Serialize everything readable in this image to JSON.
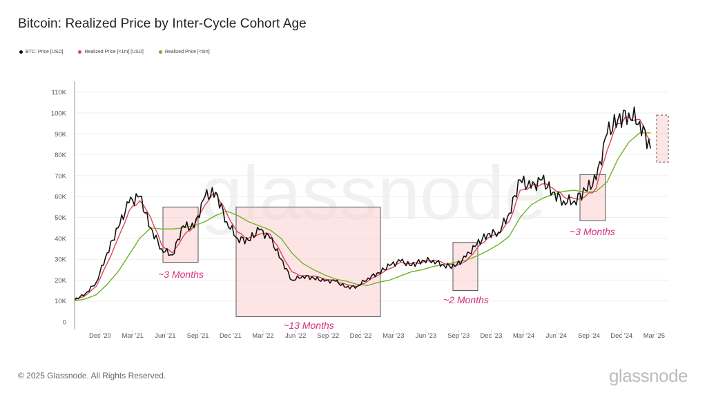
{
  "title": "Bitcoin: Realized Price by Inter-Cycle Cohort Age",
  "legend": [
    {
      "label": "BTC: Price [USD]",
      "color": "#111111"
    },
    {
      "label": "Realized Price [<1m] [USD]",
      "color": "#e0455a"
    },
    {
      "label": "Realized Price [<6m]",
      "color": "#6fb31f"
    }
  ],
  "footer": {
    "copyright": "© 2025 Glassnode. All Rights Reserved.",
    "brand": "glassnode"
  },
  "watermark": "glassnode",
  "chart_data": {
    "type": "line",
    "title": "Bitcoin: Realized Price by Inter-Cycle Cohort Age",
    "xlabel": "",
    "ylabel": "",
    "ylim": [
      0,
      110000
    ],
    "yticks": [
      "0",
      "10K",
      "20K",
      "30K",
      "40K",
      "50K",
      "60K",
      "70K",
      "80K",
      "90K",
      "100K",
      "110K"
    ],
    "xticks": [
      "Dec '20",
      "Mar '21",
      "Jun '21",
      "Sep '21",
      "Dec '21",
      "Mar '22",
      "Jun '22",
      "Sep '22",
      "Dec '22",
      "Mar '23",
      "Jun '23",
      "Sep '23",
      "Dec '23",
      "Mar '24",
      "Jun '24",
      "Sep '24",
      "Dec '24",
      "Mar '25"
    ],
    "grid": "horizontal",
    "legend_position": "top-left",
    "x": [
      "2020-10",
      "2020-11",
      "2020-12",
      "2021-01",
      "2021-02",
      "2021-03",
      "2021-04",
      "2021-05",
      "2021-06",
      "2021-07",
      "2021-08",
      "2021-09",
      "2021-10",
      "2021-11",
      "2021-12",
      "2022-01",
      "2022-02",
      "2022-03",
      "2022-04",
      "2022-05",
      "2022-06",
      "2022-07",
      "2022-08",
      "2022-09",
      "2022-10",
      "2022-11",
      "2022-12",
      "2023-01",
      "2023-02",
      "2023-03",
      "2023-04",
      "2023-05",
      "2023-06",
      "2023-07",
      "2023-08",
      "2023-09",
      "2023-10",
      "2023-11",
      "2023-12",
      "2024-01",
      "2024-02",
      "2024-03",
      "2024-04",
      "2024-05",
      "2024-06",
      "2024-07",
      "2024-08",
      "2024-09",
      "2024-10",
      "2024-11",
      "2024-12",
      "2025-01",
      "2025-02",
      "2025-03"
    ],
    "series": [
      {
        "name": "BTC: Price [USD]",
        "color": "#111111",
        "values": [
          10500,
          13500,
          19000,
          33000,
          45000,
          57000,
          60000,
          45000,
          35000,
          32000,
          46000,
          45000,
          60000,
          62000,
          48000,
          40000,
          39000,
          44000,
          40000,
          30000,
          20000,
          22000,
          21000,
          19500,
          19500,
          16500,
          17000,
          21000,
          23500,
          27000,
          29000,
          27000,
          29500,
          29500,
          27000,
          26500,
          31000,
          37000,
          42000,
          43000,
          52000,
          68000,
          64000,
          68000,
          62000,
          58000,
          58000,
          63000,
          68000,
          90000,
          97000,
          100000,
          96000,
          83000
        ]
      },
      {
        "name": "Realized Price [<1m] [USD]",
        "color": "#e0455a",
        "values": [
          10500,
          12500,
          17000,
          28000,
          40000,
          53000,
          58000,
          50000,
          37000,
          33000,
          41000,
          46000,
          56000,
          62000,
          52000,
          43000,
          40000,
          42000,
          42000,
          33000,
          24000,
          22000,
          22000,
          20500,
          19500,
          18000,
          17000,
          19500,
          22500,
          25500,
          28500,
          28000,
          28500,
          29500,
          28000,
          27000,
          29000,
          35000,
          40000,
          42000,
          48000,
          63000,
          65000,
          66000,
          64000,
          60000,
          59000,
          60000,
          64000,
          82000,
          95000,
          98000,
          97000,
          87000
        ]
      },
      {
        "name": "Realized Price [<6m]",
        "color": "#6fb31f",
        "values": [
          10000,
          11000,
          13000,
          18000,
          24000,
          32000,
          40000,
          45000,
          44500,
          44500,
          45000,
          46000,
          48000,
          51000,
          53000,
          51000,
          48000,
          46000,
          44000,
          40000,
          33000,
          28000,
          25000,
          22500,
          20500,
          19500,
          18000,
          17500,
          19000,
          20000,
          22000,
          24000,
          25000,
          26500,
          27500,
          28500,
          29500,
          31500,
          34000,
          37000,
          41000,
          50000,
          56000,
          59000,
          61000,
          62500,
          63000,
          62000,
          62500,
          67000,
          78000,
          86000,
          90500,
          90500
        ]
      }
    ],
    "annotations": [
      {
        "label": "~3 Months",
        "range": [
          "2021-05",
          "2021-08"
        ],
        "y_range": [
          28500,
          55000
        ],
        "style": "solid"
      },
      {
        "label": "~13 Months",
        "range": [
          "2021-11",
          "2022-12"
        ],
        "y_range": [
          2500,
          55000
        ],
        "style": "solid"
      },
      {
        "label": "~2 Months",
        "range": [
          "2023-08",
          "2023-10"
        ],
        "y_range": [
          15000,
          38000
        ],
        "style": "solid"
      },
      {
        "label": "~3 Months",
        "range": [
          "2024-07",
          "2024-10"
        ],
        "y_range": [
          48500,
          70500
        ],
        "style": "solid"
      },
      {
        "label": "",
        "range": [
          "2025-02",
          "2025-03"
        ],
        "y_range": [
          76500,
          99000
        ],
        "style": "dashed"
      }
    ]
  }
}
